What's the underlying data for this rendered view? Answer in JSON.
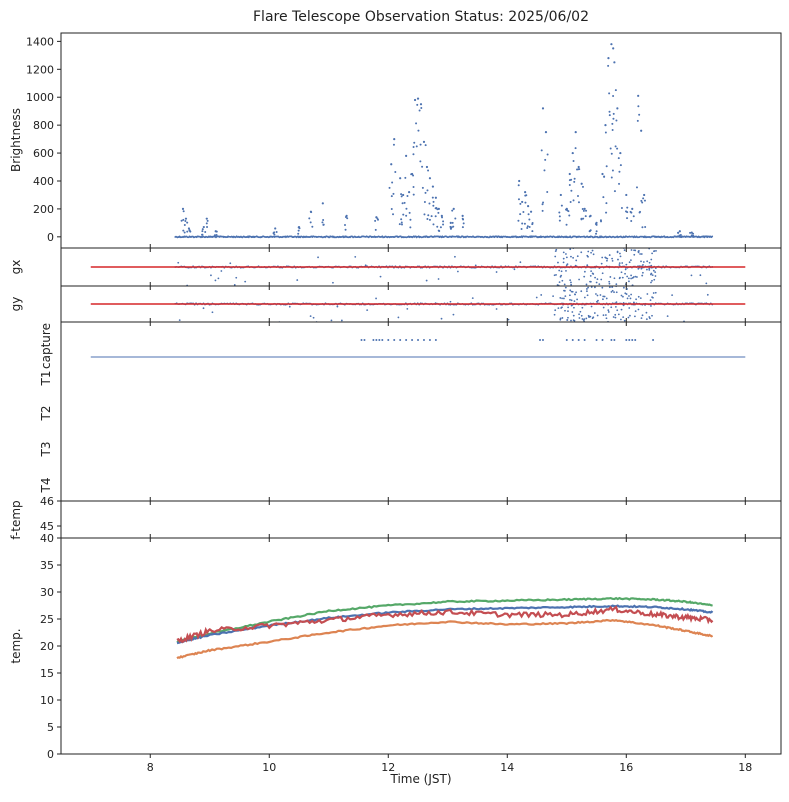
{
  "figure": {
    "title": "Flare Telescope Observation Status: 2025/06/02"
  },
  "chart_data": {
    "type": "scatter",
    "title": "Flare Telescope Observation Status: 2025/06/02",
    "xlabel": "Time (JST)",
    "xlim": [
      6.5,
      18.6
    ],
    "xticks": [
      8,
      10,
      12,
      14,
      16,
      18
    ],
    "panels": [
      {
        "key": "brightness",
        "ylabel": "Brightness",
        "ylim": [
          -80,
          1460
        ],
        "yticks": [
          0,
          200,
          400,
          600,
          800,
          1000,
          1200,
          1400
        ],
        "series": [
          {
            "color": "#4c72b0",
            "kind": "points",
            "baseline": {
              "x": [
                8.42,
                17.45
              ],
              "y": 0
            },
            "points": [
              [
                8.55,
                200
              ],
              [
                8.6,
                130
              ],
              [
                8.65,
                60
              ],
              [
                8.9,
                70
              ],
              [
                8.95,
                130
              ],
              [
                9.1,
                40
              ],
              [
                10.1,
                60
              ],
              [
                10.5,
                70
              ],
              [
                10.7,
                180
              ],
              [
                10.9,
                240
              ],
              [
                11.3,
                150
              ],
              [
                11.8,
                140
              ],
              [
                12.05,
                520
              ],
              [
                12.1,
                700
              ],
              [
                12.2,
                420
              ],
              [
                12.25,
                300
              ],
              [
                12.3,
                580
              ],
              [
                12.35,
                320
              ],
              [
                12.4,
                450
              ],
              [
                12.45,
                980
              ],
              [
                12.5,
                990
              ],
              [
                12.55,
                950
              ],
              [
                12.6,
                680
              ],
              [
                12.65,
                500
              ],
              [
                12.7,
                420
              ],
              [
                12.75,
                360
              ],
              [
                12.8,
                280
              ],
              [
                12.85,
                200
              ],
              [
                12.9,
                150
              ],
              [
                13.05,
                100
              ],
              [
                13.1,
                200
              ],
              [
                13.25,
                150
              ],
              [
                14.2,
                400
              ],
              [
                14.25,
                250
              ],
              [
                14.3,
                320
              ],
              [
                14.35,
                220
              ],
              [
                14.4,
                180
              ],
              [
                14.6,
                920
              ],
              [
                14.65,
                750
              ],
              [
                14.9,
                300
              ],
              [
                15.0,
                200
              ],
              [
                15.05,
                450
              ],
              [
                15.1,
                600
              ],
              [
                15.15,
                750
              ],
              [
                15.2,
                500
              ],
              [
                15.25,
                380
              ],
              [
                15.3,
                200
              ],
              [
                15.4,
                150
              ],
              [
                15.5,
                100
              ],
              [
                15.6,
                450
              ],
              [
                15.65,
                800
              ],
              [
                15.7,
                1280
              ],
              [
                15.75,
                1380
              ],
              [
                15.78,
                1350
              ],
              [
                15.8,
                1250
              ],
              [
                15.85,
                920
              ],
              [
                15.9,
                600
              ],
              [
                16.0,
                300
              ],
              [
                16.1,
                200
              ],
              [
                16.2,
                1010
              ],
              [
                16.25,
                760
              ],
              [
                16.3,
                300
              ],
              [
                16.9,
                40
              ],
              [
                17.1,
                30
              ]
            ]
          }
        ]
      },
      {
        "key": "gx",
        "ylabel": "gx",
        "series": [
          {
            "color": "#4c72b0",
            "kind": "noise",
            "x": [
              8.42,
              17.45
            ],
            "level": 0
          },
          {
            "color": "#d62728",
            "kind": "line",
            "x": [
              7.0,
              18.0
            ],
            "level": 0
          }
        ]
      },
      {
        "key": "gy",
        "ylabel": "gy",
        "series": [
          {
            "color": "#4c72b0",
            "kind": "noise",
            "x": [
              8.42,
              17.45
            ],
            "level": 0
          },
          {
            "color": "#d62728",
            "kind": "line",
            "x": [
              7.0,
              18.0
            ],
            "level": 0
          }
        ]
      },
      {
        "key": "status",
        "row_labels": [
          "capture",
          "T1",
          "T2",
          "T3",
          "T4"
        ],
        "series": [
          {
            "color": "#4c72b0",
            "kind": "line",
            "row": "T1",
            "x": [
              7.0,
              18.0
            ]
          },
          {
            "color": "#4c72b0",
            "kind": "marks",
            "row": "capture",
            "x": [
              11.55,
              11.6,
              11.75,
              11.8,
              11.85,
              11.9,
              12.0,
              12.1,
              12.2,
              12.3,
              12.4,
              12.5,
              12.6,
              12.7,
              12.8,
              14.55,
              14.6,
              15.0,
              15.1,
              15.2,
              15.3,
              15.5,
              15.6,
              15.75,
              15.8,
              16.0,
              16.05,
              16.1,
              16.15,
              16.45
            ]
          }
        ]
      },
      {
        "key": "ftemp",
        "ylabel": "f-temp",
        "yticks": [
          45,
          46
        ],
        "ytick_labels": [
          "45",
          "46"
        ],
        "series": []
      },
      {
        "key": "temp",
        "ylabel": "temp.",
        "ylim": [
          0,
          40
        ],
        "yticks": [
          0,
          5,
          10,
          15,
          20,
          25,
          30,
          35,
          40
        ],
        "series": [
          {
            "color": "#55a868",
            "kind": "curve",
            "x": [
              8.45,
              9.0,
              10.0,
              11.0,
              12.0,
              13.0,
              14.0,
              15.0,
              15.8,
              16.5,
              17.0,
              17.45
            ],
            "values": [
              20.8,
              22.3,
              24.5,
              26.5,
              27.5,
              28.2,
              28.4,
              28.6,
              28.8,
              28.6,
              28.2,
              27.5
            ]
          },
          {
            "color": "#4c72b0",
            "kind": "curve",
            "x": [
              8.45,
              9.0,
              10.0,
              11.0,
              12.0,
              13.0,
              14.0,
              15.0,
              15.8,
              16.5,
              17.0,
              17.45
            ],
            "values": [
              20.6,
              22.0,
              23.8,
              25.2,
              26.2,
              26.8,
              27.0,
              27.2,
              27.4,
              27.2,
              26.8,
              26.2
            ]
          },
          {
            "color": "#c44e52",
            "kind": "curve",
            "x": [
              8.45,
              9.0,
              10.0,
              11.0,
              12.0,
              13.0,
              14.0,
              15.0,
              15.8,
              16.5,
              17.0,
              17.45
            ],
            "values": [
              20.9,
              22.8,
              23.8,
              24.8,
              25.8,
              26.3,
              25.8,
              25.8,
              26.8,
              25.8,
              25.3,
              24.8
            ]
          },
          {
            "color": "#dd8452",
            "kind": "curve",
            "x": [
              8.45,
              9.0,
              10.0,
              11.0,
              12.0,
              13.0,
              14.0,
              15.0,
              15.8,
              16.5,
              17.0,
              17.45
            ],
            "values": [
              17.8,
              19.2,
              20.8,
              22.5,
              23.8,
              24.5,
              24.0,
              24.2,
              24.8,
              23.8,
              22.8,
              21.8
            ]
          }
        ]
      }
    ]
  }
}
